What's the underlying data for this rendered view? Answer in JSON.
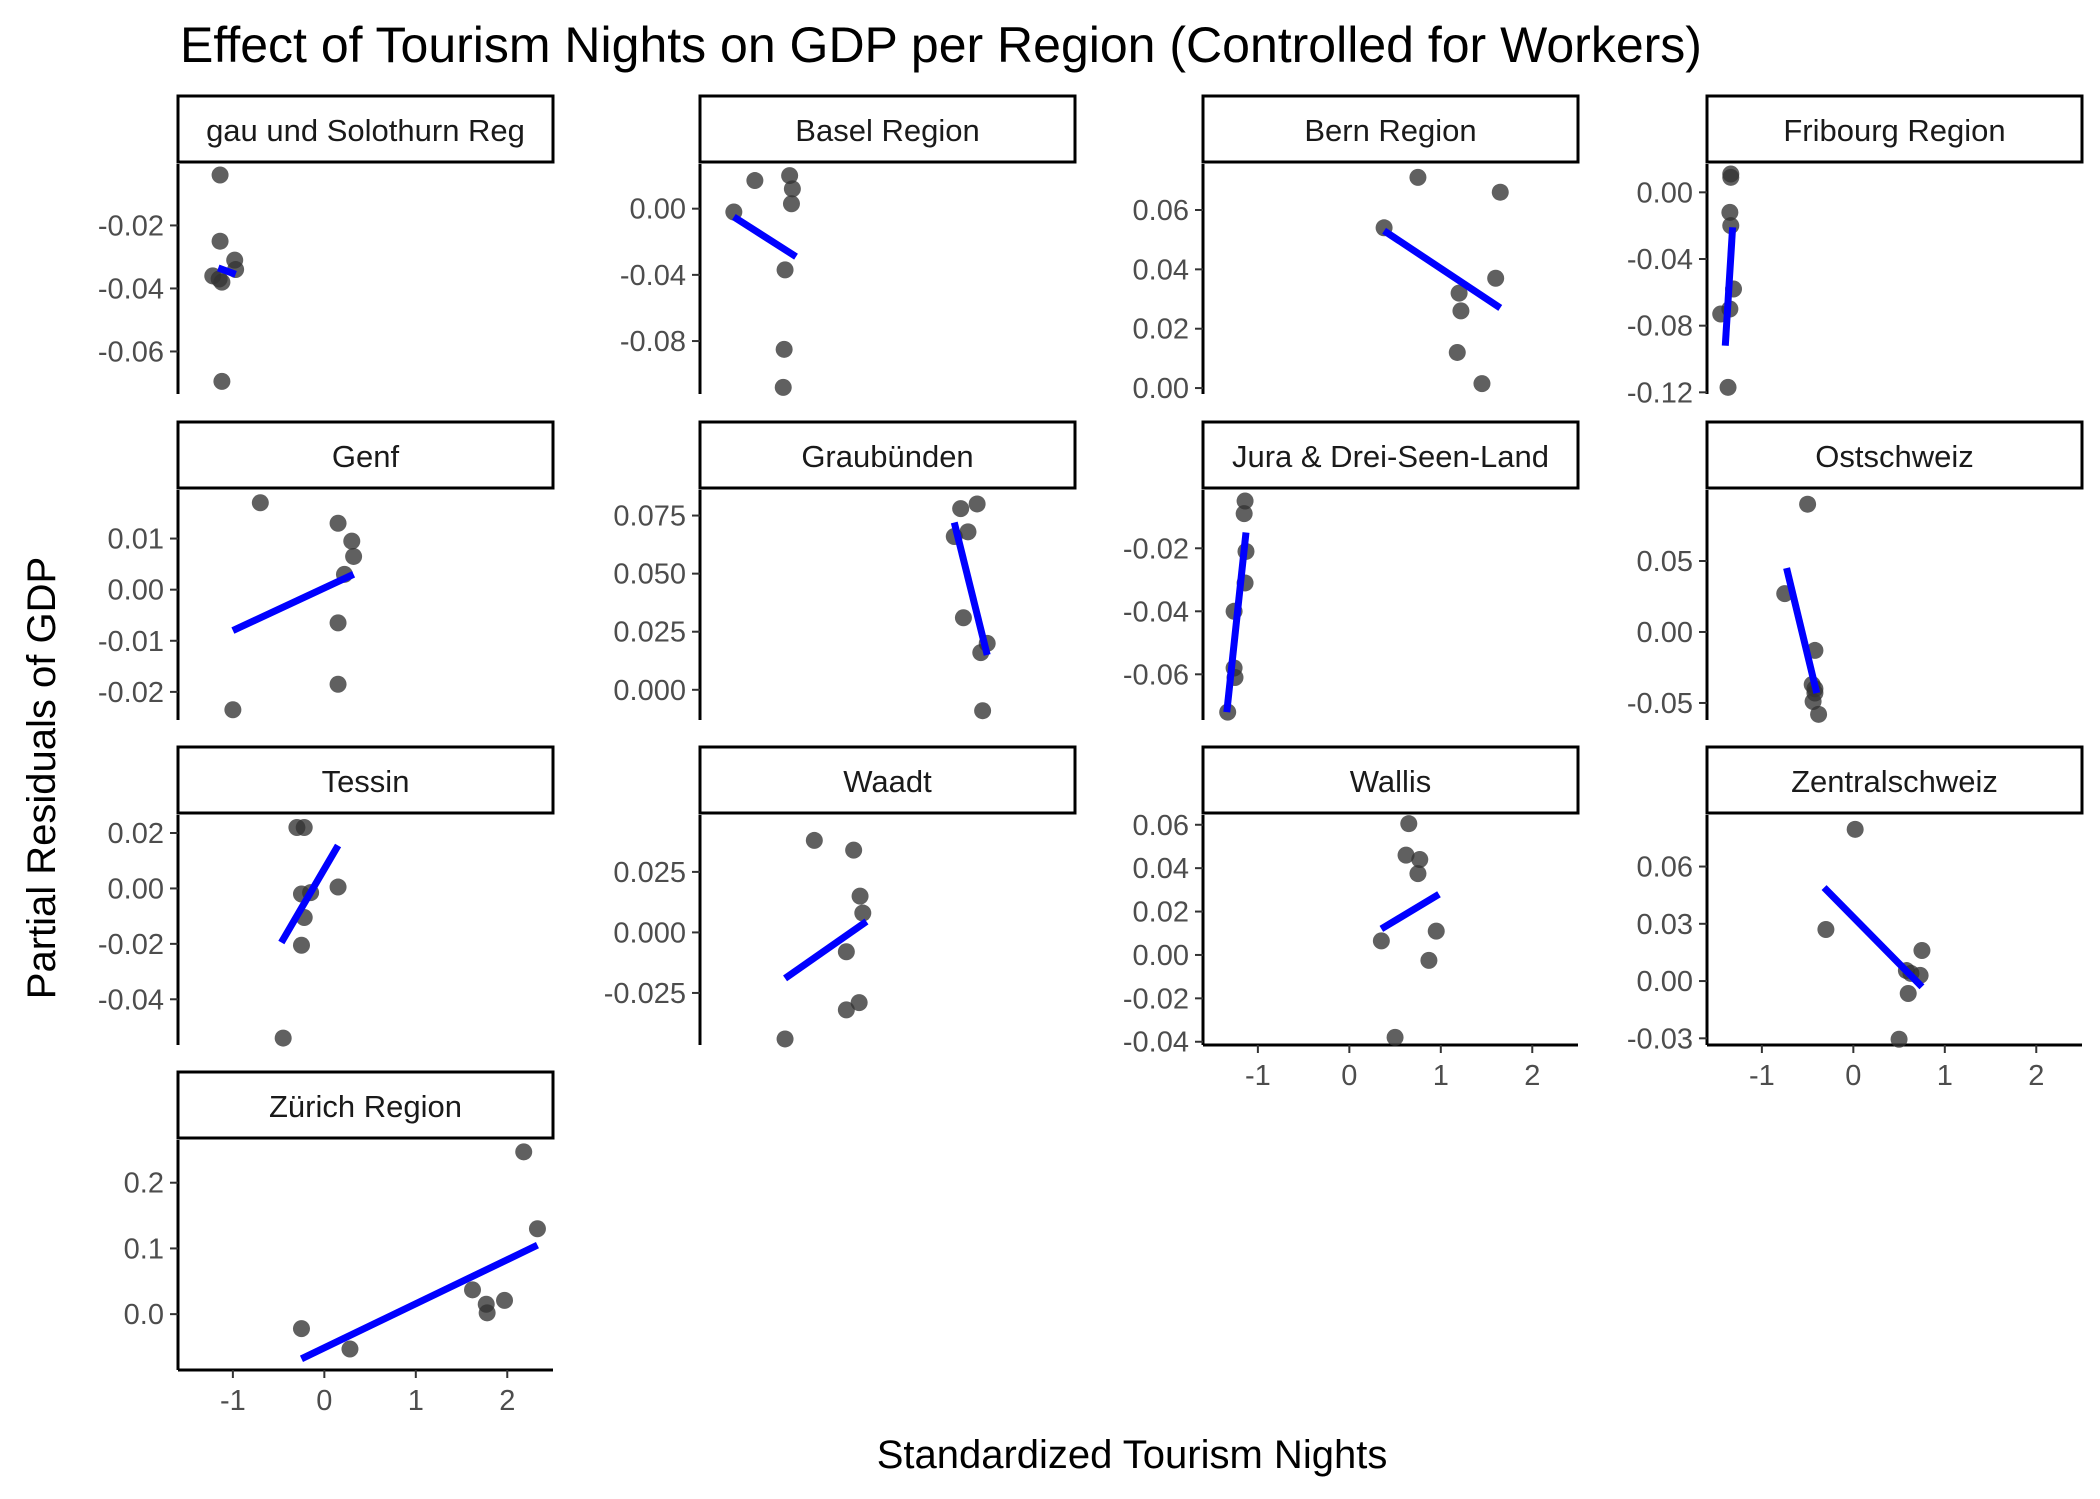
{
  "chart_data": {
    "type": "scatter",
    "title": "Effect of Tourism Nights on GDP per Region (Controlled for Workers)",
    "xlabel": "Standardized Tourism Nights",
    "ylabel": "Partial Residuals of GDP",
    "xlim": [
      -1.6,
      2.5
    ],
    "xticks": [
      "-1",
      "0",
      "1",
      "2"
    ],
    "grid": false,
    "legend": "none",
    "colors": {
      "points": "#333333",
      "fit_line": "#0000ff"
    },
    "panels": [
      {
        "name": "Aargau und Solothurn Region",
        "strip_visible": "gau und Solothurn Reg",
        "ylim": [
          -0.0735,
          -0.0005
        ],
        "yticks": [
          "-0.02",
          "-0.04",
          "-0.06"
        ],
        "x_axis_shown": false,
        "points": [
          [
            -1.14,
            -0.004
          ],
          [
            -1.14,
            -0.025
          ],
          [
            -0.98,
            -0.031
          ],
          [
            -0.97,
            -0.034
          ],
          [
            -1.22,
            -0.036
          ],
          [
            -1.15,
            -0.037
          ],
          [
            -1.12,
            -0.038
          ],
          [
            -1.12,
            -0.0695
          ]
        ],
        "fit": [
          [
            -1.16,
            -0.0335
          ],
          [
            -0.97,
            -0.0355
          ]
        ]
      },
      {
        "name": "Basel Region",
        "ylim": [
          -0.112,
          0.027
        ],
        "yticks": [
          "0.00",
          "-0.04",
          "-0.08"
        ],
        "x_axis_shown": false,
        "points": [
          [
            -1.23,
            -0.002
          ],
          [
            -1.0,
            0.017
          ],
          [
            -0.62,
            0.02
          ],
          [
            -0.59,
            0.012
          ],
          [
            -0.6,
            0.003
          ],
          [
            -0.67,
            -0.037
          ],
          [
            -0.68,
            -0.085
          ],
          [
            -0.69,
            -0.108
          ]
        ],
        "fit": [
          [
            -1.23,
            -0.005
          ],
          [
            -0.55,
            -0.029
          ]
        ]
      },
      {
        "name": "Bern Region",
        "ylim": [
          -0.002,
          0.0755
        ],
        "yticks": [
          "0.06",
          "0.04",
          "0.02",
          "0.00"
        ],
        "x_axis_shown": false,
        "points": [
          [
            0.38,
            0.054
          ],
          [
            0.75,
            0.071
          ],
          [
            1.65,
            0.066
          ],
          [
            1.2,
            0.032
          ],
          [
            1.22,
            0.026
          ],
          [
            1.6,
            0.037
          ],
          [
            1.18,
            0.012
          ],
          [
            1.45,
            0.0015
          ]
        ],
        "fit": [
          [
            0.38,
            0.053
          ],
          [
            1.65,
            0.027
          ]
        ]
      },
      {
        "name": "Fribourg Region",
        "ylim": [
          -0.121,
          0.017
        ],
        "yticks": [
          "0.00",
          "-0.04",
          "-0.08",
          "-0.12"
        ],
        "x_axis_shown": false,
        "points": [
          [
            -1.34,
            0.011
          ],
          [
            -1.34,
            0.009
          ],
          [
            -1.35,
            -0.012
          ],
          [
            -1.34,
            -0.02
          ],
          [
            -1.31,
            -0.058
          ],
          [
            -1.35,
            -0.07
          ],
          [
            -1.45,
            -0.073
          ],
          [
            -1.37,
            -0.117
          ]
        ],
        "fit": [
          [
            -1.4,
            -0.092
          ],
          [
            -1.32,
            -0.021
          ]
        ]
      },
      {
        "name": "Genf",
        "ylim": [
          -0.0255,
          0.0195
        ],
        "yticks": [
          "0.01",
          "0.00",
          "-0.01",
          "-0.02"
        ],
        "x_axis_shown": false,
        "points": [
          [
            -0.7,
            0.017
          ],
          [
            0.15,
            0.013
          ],
          [
            0.3,
            0.0095
          ],
          [
            0.32,
            0.0065
          ],
          [
            0.22,
            0.003
          ],
          [
            0.15,
            -0.0065
          ],
          [
            0.15,
            -0.0185
          ],
          [
            -1.0,
            -0.0235
          ]
        ],
        "fit": [
          [
            -1.0,
            -0.008
          ],
          [
            0.32,
            0.003
          ]
        ]
      },
      {
        "name": "Graubünden",
        "ylim": [
          -0.013,
          0.086
        ],
        "yticks": [
          "0.075",
          "0.050",
          "0.025",
          "0.000"
        ],
        "x_axis_shown": false,
        "points": [
          [
            1.25,
            0.078
          ],
          [
            1.43,
            0.08
          ],
          [
            1.33,
            0.068
          ],
          [
            1.18,
            0.066
          ],
          [
            1.28,
            0.031
          ],
          [
            1.47,
            0.016
          ],
          [
            1.54,
            0.02
          ],
          [
            1.49,
            -0.009
          ]
        ],
        "fit": [
          [
            1.18,
            0.072
          ],
          [
            1.54,
            0.015
          ]
        ]
      },
      {
        "name": "Jura & Drei-Seen-Land",
        "strip_visible": "Jura & Drei-Seen-Land",
        "ylim": [
          -0.0745,
          -0.0015
        ],
        "yticks": [
          "-0.02",
          "-0.04",
          "-0.06"
        ],
        "x_axis_shown": false,
        "points": [
          [
            -1.14,
            -0.005
          ],
          [
            -1.15,
            -0.009
          ],
          [
            -1.13,
            -0.021
          ],
          [
            -1.14,
            -0.031
          ],
          [
            -1.26,
            -0.04
          ],
          [
            -1.26,
            -0.058
          ],
          [
            -1.25,
            -0.061
          ],
          [
            -1.33,
            -0.072
          ]
        ],
        "fit": [
          [
            -1.34,
            -0.072
          ],
          [
            -1.13,
            -0.015
          ]
        ]
      },
      {
        "name": "Ostschweiz",
        "ylim": [
          -0.062,
          0.1
        ],
        "yticks": [
          "0.05",
          "0.00",
          "-0.05"
        ],
        "x_axis_shown": false,
        "points": [
          [
            -0.5,
            0.09
          ],
          [
            -0.75,
            0.027
          ],
          [
            -0.42,
            -0.013
          ],
          [
            -0.45,
            -0.037
          ],
          [
            -0.42,
            -0.04
          ],
          [
            -0.42,
            -0.043
          ],
          [
            -0.44,
            -0.049
          ],
          [
            -0.38,
            -0.058
          ]
        ],
        "fit": [
          [
            -0.73,
            0.045
          ],
          [
            -0.4,
            -0.043
          ]
        ]
      },
      {
        "name": "Tessin",
        "ylim": [
          -0.0565,
          0.0265
        ],
        "yticks": [
          "0.02",
          "0.00",
          "-0.02",
          "-0.04"
        ],
        "x_axis_shown": false,
        "points": [
          [
            -0.3,
            0.022
          ],
          [
            -0.22,
            0.022
          ],
          [
            -0.25,
            -0.002
          ],
          [
            -0.15,
            -0.0015
          ],
          [
            0.15,
            0.0005
          ],
          [
            -0.22,
            -0.0105
          ],
          [
            -0.25,
            -0.0205
          ],
          [
            -0.45,
            -0.054
          ]
        ],
        "fit": [
          [
            -0.47,
            -0.0195
          ],
          [
            0.15,
            0.0155
          ]
        ]
      },
      {
        "name": "Waadt",
        "ylim": [
          -0.0465,
          0.0485
        ],
        "yticks": [
          "0.025",
          "0.000",
          "-0.025"
        ],
        "x_axis_shown": false,
        "points": [
          [
            -0.35,
            0.038
          ],
          [
            0.08,
            0.034
          ],
          [
            0.15,
            0.015
          ],
          [
            0.18,
            0.008
          ],
          [
            0.0,
            -0.008
          ],
          [
            0.0,
            -0.032
          ],
          [
            0.14,
            -0.029
          ],
          [
            -0.67,
            -0.044
          ]
        ],
        "fit": [
          [
            -0.67,
            -0.019
          ],
          [
            0.22,
            0.0045
          ]
        ]
      },
      {
        "name": "Wallis",
        "ylim": [
          -0.0415,
          0.0645
        ],
        "yticks": [
          "0.06",
          "0.04",
          "0.02",
          "0.00",
          "-0.02",
          "-0.04"
        ],
        "x_axis_shown": true,
        "points": [
          [
            0.65,
            0.0605
          ],
          [
            0.62,
            0.046
          ],
          [
            0.77,
            0.044
          ],
          [
            0.75,
            0.0375
          ],
          [
            0.35,
            0.0065
          ],
          [
            0.95,
            0.011
          ],
          [
            0.87,
            -0.0025
          ],
          [
            0.5,
            -0.038
          ]
        ],
        "fit": [
          [
            0.35,
            0.012
          ],
          [
            0.98,
            0.028
          ]
        ]
      },
      {
        "name": "Zentralschweiz",
        "ylim": [
          -0.0335,
          0.087
        ],
        "yticks": [
          "0.06",
          "0.03",
          "0.00",
          "-0.03"
        ],
        "x_axis_shown": true,
        "points": [
          [
            0.02,
            0.0795
          ],
          [
            -0.3,
            0.027
          ],
          [
            0.58,
            0.0055
          ],
          [
            0.63,
            0.004
          ],
          [
            0.75,
            0.016
          ],
          [
            0.73,
            0.003
          ],
          [
            0.6,
            -0.0065
          ],
          [
            0.5,
            -0.0305
          ]
        ],
        "fit": [
          [
            -0.32,
            0.049
          ],
          [
            0.75,
            -0.003
          ]
        ]
      },
      {
        "name": "Zürich Region",
        "ylim": [
          -0.085,
          0.265
        ],
        "yticks": [
          "0.2",
          "0.1",
          "0.0"
        ],
        "x_axis_shown": true,
        "points": [
          [
            -0.25,
            -0.022
          ],
          [
            0.28,
            -0.053
          ],
          [
            2.18,
            0.247
          ],
          [
            2.33,
            0.13
          ],
          [
            1.62,
            0.037
          ],
          [
            1.77,
            0.015
          ],
          [
            1.78,
            0.002
          ],
          [
            1.97,
            0.021
          ]
        ],
        "fit": [
          [
            -0.25,
            -0.068
          ],
          [
            2.33,
            0.105
          ]
        ]
      }
    ]
  }
}
